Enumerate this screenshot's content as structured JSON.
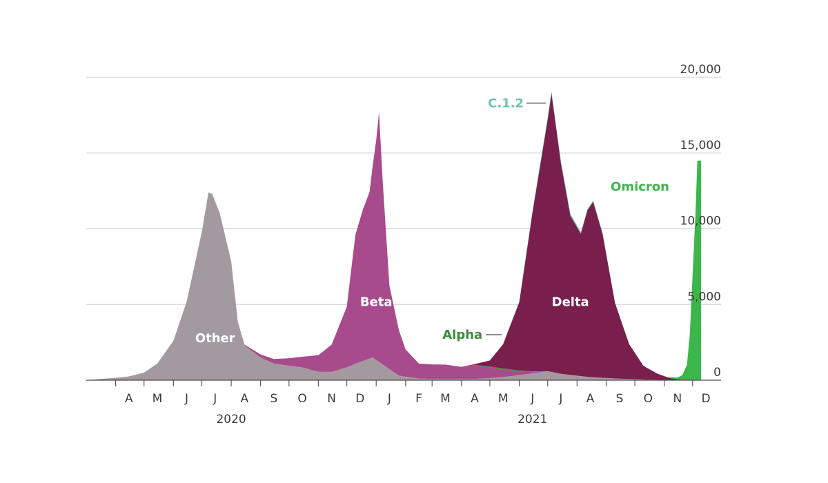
{
  "chart_data": {
    "type": "area",
    "title": "",
    "xlabel": "",
    "ylabel": "",
    "ylim": [
      0,
      20000
    ],
    "yticks": [
      0,
      5000,
      10000,
      15000,
      20000
    ],
    "ytick_labels": [
      "0",
      "5,000",
      "10,000",
      "15,000",
      "20,000"
    ],
    "xlim": [
      "2020-03-01",
      "2021-12-31"
    ],
    "month_ticks": [
      {
        "label": "A",
        "date": "2020-04-15"
      },
      {
        "label": "M",
        "date": "2020-05-15"
      },
      {
        "label": "J",
        "date": "2020-06-15"
      },
      {
        "label": "J",
        "date": "2020-07-15"
      },
      {
        "label": "A",
        "date": "2020-08-15"
      },
      {
        "label": "S",
        "date": "2020-09-15"
      },
      {
        "label": "O",
        "date": "2020-10-15"
      },
      {
        "label": "N",
        "date": "2020-11-15"
      },
      {
        "label": "D",
        "date": "2020-12-15"
      },
      {
        "label": "J",
        "date": "2021-01-15"
      },
      {
        "label": "F",
        "date": "2021-02-15"
      },
      {
        "label": "M",
        "date": "2021-03-15"
      },
      {
        "label": "A",
        "date": "2021-04-15"
      },
      {
        "label": "M",
        "date": "2021-05-15"
      },
      {
        "label": "J",
        "date": "2021-06-15"
      },
      {
        "label": "J",
        "date": "2021-07-15"
      },
      {
        "label": "A",
        "date": "2021-08-15"
      },
      {
        "label": "S",
        "date": "2021-09-15"
      },
      {
        "label": "O",
        "date": "2021-10-15"
      },
      {
        "label": "N",
        "date": "2021-11-15"
      },
      {
        "label": "D",
        "date": "2021-12-15"
      }
    ],
    "year_labels": [
      {
        "label": "2020",
        "date": "2020-08-01"
      },
      {
        "label": "2021",
        "date": "2021-06-15"
      }
    ],
    "stacked": true,
    "series": [
      {
        "name": "Other",
        "color": "#a39aa0",
        "points": [
          [
            "2020-03-01",
            0
          ],
          [
            "2020-03-15",
            80
          ],
          [
            "2020-04-01",
            150
          ],
          [
            "2020-04-15",
            250
          ],
          [
            "2020-05-01",
            500
          ],
          [
            "2020-05-15",
            1100
          ],
          [
            "2020-06-01",
            2600
          ],
          [
            "2020-06-15",
            5200
          ],
          [
            "2020-07-01",
            9800
          ],
          [
            "2020-07-08",
            12400
          ],
          [
            "2020-07-12",
            12300
          ],
          [
            "2020-07-20",
            11000
          ],
          [
            "2020-08-01",
            7800
          ],
          [
            "2020-08-08",
            3800
          ],
          [
            "2020-08-15",
            2300
          ],
          [
            "2020-09-01",
            1500
          ],
          [
            "2020-09-15",
            1100
          ],
          [
            "2020-10-01",
            950
          ],
          [
            "2020-10-15",
            850
          ],
          [
            "2020-11-01",
            550
          ],
          [
            "2020-11-15",
            550
          ],
          [
            "2020-12-01",
            850
          ],
          [
            "2020-12-15",
            1200
          ],
          [
            "2020-12-28",
            1500
          ],
          [
            "2021-01-10",
            950
          ],
          [
            "2021-01-25",
            300
          ],
          [
            "2021-02-15",
            100
          ],
          [
            "2021-03-15",
            80
          ],
          [
            "2021-04-15",
            80
          ],
          [
            "2021-05-15",
            200
          ],
          [
            "2021-06-15",
            450
          ],
          [
            "2021-07-01",
            600
          ],
          [
            "2021-07-15",
            420
          ],
          [
            "2021-08-15",
            200
          ],
          [
            "2021-09-15",
            100
          ],
          [
            "2021-10-15",
            40
          ],
          [
            "2021-11-15",
            0
          ],
          [
            "2021-12-10",
            0
          ]
        ]
      },
      {
        "name": "Beta",
        "color": "#a84b8d",
        "points": [
          [
            "2020-03-01",
            0
          ],
          [
            "2020-07-15",
            0
          ],
          [
            "2020-08-15",
            50
          ],
          [
            "2020-09-01",
            200
          ],
          [
            "2020-09-15",
            300
          ],
          [
            "2020-10-01",
            500
          ],
          [
            "2020-10-15",
            700
          ],
          [
            "2020-11-01",
            1100
          ],
          [
            "2020-11-15",
            1800
          ],
          [
            "2020-12-01",
            4000
          ],
          [
            "2020-12-10",
            8500
          ],
          [
            "2020-12-18",
            10000
          ],
          [
            "2020-12-25",
            11000
          ],
          [
            "2021-01-01",
            14500
          ],
          [
            "2021-01-04",
            16500
          ],
          [
            "2021-01-08",
            12000
          ],
          [
            "2021-01-15",
            5500
          ],
          [
            "2021-01-25",
            3000
          ],
          [
            "2021-02-01",
            1800
          ],
          [
            "2021-02-15",
            1000
          ],
          [
            "2021-03-01",
            950
          ],
          [
            "2021-03-15",
            950
          ],
          [
            "2021-04-01",
            800
          ],
          [
            "2021-04-15",
            900
          ],
          [
            "2021-05-01",
            700
          ],
          [
            "2021-05-15",
            500
          ],
          [
            "2021-06-01",
            250
          ],
          [
            "2021-06-15",
            100
          ],
          [
            "2021-07-01",
            0
          ],
          [
            "2021-12-10",
            0
          ]
        ]
      },
      {
        "name": "Alpha",
        "color": "#3c8a3e",
        "points": [
          [
            "2020-03-01",
            0
          ],
          [
            "2021-04-01",
            0
          ],
          [
            "2021-04-15",
            30
          ],
          [
            "2021-05-01",
            60
          ],
          [
            "2021-05-15",
            80
          ],
          [
            "2021-06-01",
            60
          ],
          [
            "2021-06-15",
            30
          ],
          [
            "2021-07-01",
            0
          ],
          [
            "2021-12-10",
            0
          ]
        ]
      },
      {
        "name": "Delta",
        "color": "#7a1e4e",
        "points": [
          [
            "2020-03-01",
            0
          ],
          [
            "2021-04-01",
            0
          ],
          [
            "2021-04-15",
            50
          ],
          [
            "2021-05-01",
            400
          ],
          [
            "2021-05-15",
            1600
          ],
          [
            "2021-06-01",
            4500
          ],
          [
            "2021-06-15",
            10500
          ],
          [
            "2021-07-01",
            16600
          ],
          [
            "2021-07-05",
            18400
          ],
          [
            "2021-07-15",
            13900
          ],
          [
            "2021-07-25",
            10500
          ],
          [
            "2021-08-05",
            9400
          ],
          [
            "2021-08-12",
            11000
          ],
          [
            "2021-08-18",
            11600
          ],
          [
            "2021-08-28",
            9500
          ],
          [
            "2021-09-10",
            5000
          ],
          [
            "2021-09-25",
            2300
          ],
          [
            "2021-10-10",
            900
          ],
          [
            "2021-10-25",
            400
          ],
          [
            "2021-11-05",
            150
          ],
          [
            "2021-11-15",
            50
          ],
          [
            "2021-11-25",
            0
          ],
          [
            "2021-12-10",
            0
          ]
        ]
      },
      {
        "name": "C.1.2",
        "color": "#6cc3b6",
        "points": [
          [
            "2020-03-01",
            0
          ],
          [
            "2021-05-01",
            0
          ],
          [
            "2021-06-01",
            50
          ],
          [
            "2021-07-01",
            150
          ],
          [
            "2021-07-15",
            150
          ],
          [
            "2021-08-01",
            120
          ],
          [
            "2021-08-15",
            80
          ],
          [
            "2021-09-01",
            30
          ],
          [
            "2021-09-15",
            0
          ],
          [
            "2021-12-10",
            0
          ]
        ]
      },
      {
        "name": "Omicron",
        "color": "#3cb64b",
        "points": [
          [
            "2020-03-01",
            0
          ],
          [
            "2021-10-25",
            0
          ],
          [
            "2021-11-05",
            40
          ],
          [
            "2021-11-15",
            120
          ],
          [
            "2021-11-20",
            300
          ],
          [
            "2021-11-25",
            1000
          ],
          [
            "2021-11-28",
            3000
          ],
          [
            "2021-12-01",
            7000
          ],
          [
            "2021-12-04",
            11000
          ],
          [
            "2021-12-06",
            14500
          ],
          [
            "2021-12-10",
            14500
          ]
        ]
      }
    ],
    "labels": [
      {
        "text": "Other",
        "series": "Other",
        "color": "#ffffff",
        "date": "2020-07-15",
        "value": 2500
      },
      {
        "text": "Beta",
        "series": "Beta",
        "color": "#ffffff",
        "date": "2021-01-01",
        "value": 4900
      },
      {
        "text": "Delta",
        "series": "Delta",
        "color": "#ffffff",
        "date": "2021-07-25",
        "value": 4900
      },
      {
        "text": "Alpha",
        "series": "Alpha",
        "color": "#3c8a3e"
      },
      {
        "text": "C.1.2",
        "series": "C.1.2",
        "color": "#6cc3b6"
      },
      {
        "text": "Omicron",
        "series": "Omicron",
        "color": "#3cb64b"
      }
    ],
    "grid": true,
    "yaxis_position": "right"
  }
}
